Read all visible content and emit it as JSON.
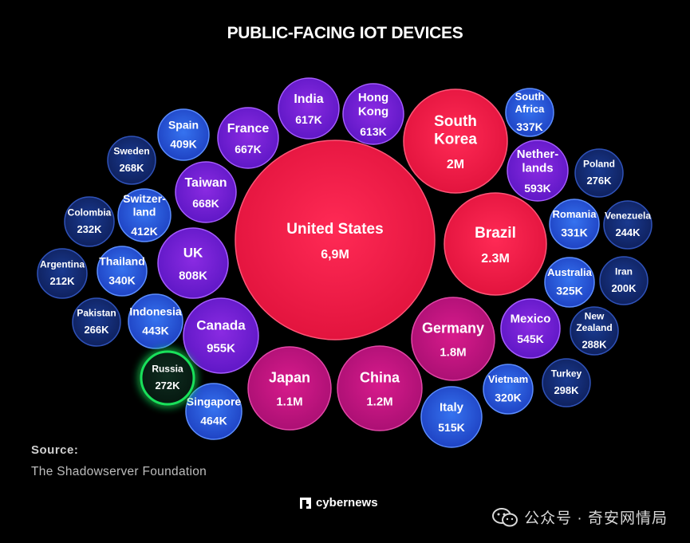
{
  "colors": {
    "red": "#ff1f4e",
    "magenta": "#ce1488",
    "purple": "#7a1fe8",
    "blue": "#2f63e4",
    "navy": "#152e7a",
    "green_ring": "#19e05a",
    "background": "#000000"
  },
  "chart_data": {
    "type": "bubble",
    "title": "PUBLIC-FACING IOT DEVICES",
    "unit": "devices",
    "series": [
      {
        "label": [
          "United States"
        ],
        "value_text": "6,9M",
        "value": 6900000
      },
      {
        "label": [
          "Brazil"
        ],
        "value_text": "2.3M",
        "value": 2300000
      },
      {
        "label": [
          "South",
          "Korea"
        ],
        "value_text": "2M",
        "value": 2000000
      },
      {
        "label": [
          "Germany"
        ],
        "value_text": "1.8M",
        "value": 1800000
      },
      {
        "label": [
          "China"
        ],
        "value_text": "1.2M",
        "value": 1200000
      },
      {
        "label": [
          "Japan"
        ],
        "value_text": "1.1M",
        "value": 1100000
      },
      {
        "label": [
          "Canada"
        ],
        "value_text": "955K",
        "value": 955000
      },
      {
        "label": [
          "UK"
        ],
        "value_text": "808K",
        "value": 808000
      },
      {
        "label": [
          "Taiwan"
        ],
        "value_text": "668K",
        "value": 668000
      },
      {
        "label": [
          "France"
        ],
        "value_text": "667K",
        "value": 667000
      },
      {
        "label": [
          "India"
        ],
        "value_text": "617K",
        "value": 617000
      },
      {
        "label": [
          "Hong",
          "Kong"
        ],
        "value_text": "613K",
        "value": 613000
      },
      {
        "label": [
          "Nether-",
          "lands"
        ],
        "value_text": "593K",
        "value": 593000
      },
      {
        "label": [
          "Mexico"
        ],
        "value_text": "545K",
        "value": 545000
      },
      {
        "label": [
          "Italy"
        ],
        "value_text": "515K",
        "value": 515000
      },
      {
        "label": [
          "Singapore"
        ],
        "value_text": "464K",
        "value": 464000
      },
      {
        "label": [
          "Indonesia"
        ],
        "value_text": "443K",
        "value": 443000
      },
      {
        "label": [
          "Switzer-",
          "land"
        ],
        "value_text": "412K",
        "value": 412000
      },
      {
        "label": [
          "Spain"
        ],
        "value_text": "409K",
        "value": 409000
      },
      {
        "label": [
          "Thailand"
        ],
        "value_text": "340K",
        "value": 340000
      },
      {
        "label": [
          "South",
          "Africa"
        ],
        "value_text": "337K",
        "value": 337000
      },
      {
        "label": [
          "Romania"
        ],
        "value_text": "331K",
        "value": 331000
      },
      {
        "label": [
          "Australia"
        ],
        "value_text": "325K",
        "value": 325000
      },
      {
        "label": [
          "Vietnam"
        ],
        "value_text": "320K",
        "value": 320000
      },
      {
        "label": [
          "Turkey"
        ],
        "value_text": "298K",
        "value": 298000
      },
      {
        "label": [
          "New",
          "Zealand"
        ],
        "value_text": "288K",
        "value": 288000
      },
      {
        "label": [
          "Poland"
        ],
        "value_text": "276K",
        "value": 276000
      },
      {
        "label": [
          "Russia"
        ],
        "value_text": "272K",
        "value": 272000,
        "highlight": true
      },
      {
        "label": [
          "Sweden"
        ],
        "value_text": "268K",
        "value": 268000
      },
      {
        "label": [
          "Pakistan"
        ],
        "value_text": "266K",
        "value": 266000
      },
      {
        "label": [
          "Venezuela"
        ],
        "value_text": "244K",
        "value": 244000
      },
      {
        "label": [
          "Colombia"
        ],
        "value_text": "232K",
        "value": 232000
      },
      {
        "label": [
          "Argentina"
        ],
        "value_text": "212K",
        "value": 212000
      },
      {
        "label": [
          "Iran"
        ],
        "value_text": "200K",
        "value": 200000
      }
    ]
  },
  "source": {
    "heading": "Source:",
    "name": "The Shadowserver Foundation"
  },
  "brand": {
    "name": "cybernews",
    "icon": "cybernews-logo-icon"
  },
  "watermark": {
    "text": "公众号 · 奇安网情局",
    "icon": "wechat-icon"
  }
}
